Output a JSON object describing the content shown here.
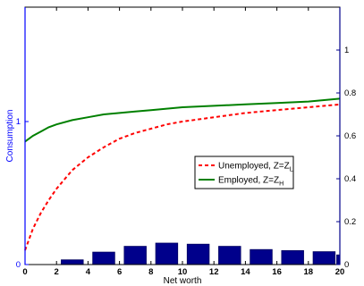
{
  "chart_data": {
    "type": "line",
    "xlabel": "Net worth",
    "ylabel_left": "Consumption",
    "xlim": [
      0,
      20
    ],
    "ylim_left": [
      0,
      1.8
    ],
    "ylim_right": [
      0,
      1.2
    ],
    "x_ticks": [
      0,
      2,
      4,
      6,
      8,
      10,
      12,
      14,
      16,
      18,
      20
    ],
    "y_left_ticks": [
      0,
      1
    ],
    "y_right_ticks": [
      0,
      0.2,
      0.4,
      0.6,
      0.8,
      1
    ],
    "grid": false,
    "legend_placement": "center-right",
    "colors": {
      "unemployed": "#ff0000",
      "employed": "#008000",
      "bars": "#00008b",
      "left_axis": "#0000ff",
      "right_axis": "#00008b"
    },
    "series": [
      {
        "name": "Unemployed, Z=Z",
        "name_subscript": "L",
        "style": "dashed",
        "axis": "left",
        "x": [
          0,
          0.5,
          1,
          1.5,
          2,
          3,
          4,
          5,
          6,
          7,
          8,
          9,
          10,
          12,
          14,
          16,
          18,
          20
        ],
        "y": [
          0.1,
          0.25,
          0.36,
          0.45,
          0.53,
          0.66,
          0.75,
          0.82,
          0.88,
          0.92,
          0.95,
          0.98,
          1.0,
          1.03,
          1.06,
          1.08,
          1.1,
          1.12
        ]
      },
      {
        "name": "Employed, Z=Z",
        "name_subscript": "H",
        "style": "solid",
        "axis": "left",
        "x": [
          0,
          0.5,
          1,
          1.5,
          2,
          3,
          4,
          5,
          6,
          7,
          8,
          9,
          10,
          12,
          14,
          16,
          18,
          20
        ],
        "y": [
          0.86,
          0.9,
          0.93,
          0.96,
          0.98,
          1.01,
          1.03,
          1.05,
          1.06,
          1.07,
          1.08,
          1.09,
          1.1,
          1.11,
          1.12,
          1.13,
          1.14,
          1.16
        ]
      },
      {
        "name": "",
        "type": "bar",
        "axis": "right",
        "x": [
          3,
          5,
          7,
          9,
          11,
          13,
          15,
          17,
          19,
          20.5
        ],
        "values": [
          0.022,
          0.058,
          0.085,
          0.1,
          0.095,
          0.085,
          0.07,
          0.065,
          0.06,
          0.045
        ]
      }
    ]
  }
}
